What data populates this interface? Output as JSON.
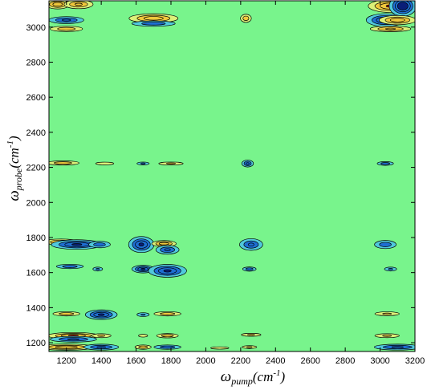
{
  "chart_data": {
    "type": "heatmap",
    "subtype": "2D contour map",
    "x_axis": {
      "label_symbol": "ω",
      "label_subscript": "pump",
      "label_unit_open": "(cm",
      "label_unit_exp": "-1",
      "label_unit_close": ")",
      "range": [
        1100,
        3200
      ],
      "ticks": [
        1200,
        1400,
        1600,
        1800,
        2000,
        2200,
        2400,
        2600,
        2800,
        3000,
        3200
      ],
      "tick_labels": [
        "1200",
        "1400",
        "1600",
        "1800",
        "2000",
        "2200",
        "2400",
        "2600",
        "2800",
        "3000",
        "3200"
      ]
    },
    "y_axis": {
      "label_symbol": "ω",
      "label_subscript": "probe",
      "label_unit_open": "(cm",
      "label_unit_exp": "-1",
      "label_unit_close": ")",
      "range": [
        1150,
        3150
      ],
      "ticks": [
        1200,
        1400,
        1600,
        1800,
        2000,
        2200,
        2400,
        2600,
        2800,
        3000
      ],
      "tick_labels": [
        "1200",
        "1400",
        "1600",
        "1800",
        "2000",
        "2200",
        "2400",
        "2600",
        "2800",
        "3000"
      ]
    },
    "background_color": "#78f48c",
    "colormap": {
      "strong_negative": "#0a1e78",
      "negative": "#1e6ed2",
      "weak_negative": "#50c8dc",
      "weak_positive": "#dcf078",
      "positive": "#f0c83c",
      "strong_positive": "#a01414"
    },
    "features": [
      {
        "x": 1150,
        "y": 3130,
        "amplitude": 0.7,
        "wx": 40,
        "wy": 15
      },
      {
        "x": 1270,
        "y": 3130,
        "amplitude": 0.6,
        "wx": 50,
        "wy": 15
      },
      {
        "x": 1200,
        "y": 3040,
        "amplitude": -0.6,
        "wx": 60,
        "wy": 12
      },
      {
        "x": 1200,
        "y": 2990,
        "amplitude": 0.5,
        "wx": 60,
        "wy": 10
      },
      {
        "x": 1700,
        "y": 3050,
        "amplitude": 0.7,
        "wx": 80,
        "wy": 15
      },
      {
        "x": 1700,
        "y": 3020,
        "amplitude": -0.5,
        "wx": 80,
        "wy": 10
      },
      {
        "x": 2230,
        "y": 3050,
        "amplitude": 0.5,
        "wx": 20,
        "wy": 15
      },
      {
        "x": 3060,
        "y": 3120,
        "amplitude": 0.8,
        "wx": 70,
        "wy": 20
      },
      {
        "x": 3130,
        "y": 3120,
        "amplitude": -1.0,
        "wx": 40,
        "wy": 30
      },
      {
        "x": 3030,
        "y": 3040,
        "amplitude": -0.8,
        "wx": 60,
        "wy": 20
      },
      {
        "x": 3100,
        "y": 3040,
        "amplitude": 0.7,
        "wx": 60,
        "wy": 15
      },
      {
        "x": 3060,
        "y": 2990,
        "amplitude": 0.6,
        "wx": 70,
        "wy": 10
      },
      {
        "x": 1180,
        "y": 2225,
        "amplitude": 0.5,
        "wx": 60,
        "wy": 8
      },
      {
        "x": 1420,
        "y": 2222,
        "amplitude": 0.35,
        "wx": 40,
        "wy": 6
      },
      {
        "x": 1640,
        "y": 2222,
        "amplitude": -0.4,
        "wx": 25,
        "wy": 6
      },
      {
        "x": 1800,
        "y": 2222,
        "amplitude": 0.4,
        "wx": 50,
        "wy": 6
      },
      {
        "x": 2240,
        "y": 2222,
        "amplitude": -0.6,
        "wx": 20,
        "wy": 12
      },
      {
        "x": 3030,
        "y": 2222,
        "amplitude": -0.5,
        "wx": 30,
        "wy": 7
      },
      {
        "x": 1170,
        "y": 1775,
        "amplitude": 0.6,
        "wx": 60,
        "wy": 10
      },
      {
        "x": 1260,
        "y": 1760,
        "amplitude": -0.8,
        "wx": 80,
        "wy": 15
      },
      {
        "x": 1390,
        "y": 1760,
        "amplitude": -0.5,
        "wx": 40,
        "wy": 12
      },
      {
        "x": 1630,
        "y": 1760,
        "amplitude": -0.8,
        "wx": 40,
        "wy": 25
      },
      {
        "x": 1760,
        "y": 1765,
        "amplitude": 0.7,
        "wx": 40,
        "wy": 10
      },
      {
        "x": 1780,
        "y": 1730,
        "amplitude": -0.6,
        "wx": 40,
        "wy": 15
      },
      {
        "x": 2260,
        "y": 1760,
        "amplitude": -0.6,
        "wx": 40,
        "wy": 20
      },
      {
        "x": 3030,
        "y": 1760,
        "amplitude": -0.5,
        "wx": 40,
        "wy": 15
      },
      {
        "x": 1220,
        "y": 1635,
        "amplitude": -0.5,
        "wx": 50,
        "wy": 8
      },
      {
        "x": 1380,
        "y": 1620,
        "amplitude": -0.4,
        "wx": 20,
        "wy": 8
      },
      {
        "x": 1640,
        "y": 1620,
        "amplitude": -0.8,
        "wx": 35,
        "wy": 12
      },
      {
        "x": 1780,
        "y": 1610,
        "amplitude": -0.8,
        "wx": 60,
        "wy": 20
      },
      {
        "x": 2250,
        "y": 1620,
        "amplitude": -0.5,
        "wx": 25,
        "wy": 8
      },
      {
        "x": 3060,
        "y": 1620,
        "amplitude": -0.4,
        "wx": 25,
        "wy": 8
      },
      {
        "x": 1200,
        "y": 1365,
        "amplitude": 0.5,
        "wx": 50,
        "wy": 8
      },
      {
        "x": 1400,
        "y": 1360,
        "amplitude": -0.8,
        "wx": 50,
        "wy": 15
      },
      {
        "x": 1640,
        "y": 1360,
        "amplitude": -0.4,
        "wx": 25,
        "wy": 8
      },
      {
        "x": 1780,
        "y": 1365,
        "amplitude": 0.5,
        "wx": 50,
        "wy": 8
      },
      {
        "x": 3040,
        "y": 1365,
        "amplitude": 0.4,
        "wx": 50,
        "wy": 8
      },
      {
        "x": 1240,
        "y": 1240,
        "amplitude": 0.8,
        "wx": 80,
        "wy": 10
      },
      {
        "x": 1240,
        "y": 1220,
        "amplitude": -0.6,
        "wx": 80,
        "wy": 10
      },
      {
        "x": 1400,
        "y": 1240,
        "amplitude": 0.4,
        "wx": 40,
        "wy": 8
      },
      {
        "x": 1640,
        "y": 1240,
        "amplitude": 0.35,
        "wx": 20,
        "wy": 6
      },
      {
        "x": 1780,
        "y": 1240,
        "amplitude": 0.5,
        "wx": 40,
        "wy": 8
      },
      {
        "x": 2260,
        "y": 1245,
        "amplitude": 0.4,
        "wx": 40,
        "wy": 6
      },
      {
        "x": 3040,
        "y": 1240,
        "amplitude": 0.4,
        "wx": 50,
        "wy": 8
      },
      {
        "x": 1200,
        "y": 1175,
        "amplitude": 0.7,
        "wx": 90,
        "wy": 10
      },
      {
        "x": 1400,
        "y": 1175,
        "amplitude": -0.6,
        "wx": 60,
        "wy": 10
      },
      {
        "x": 1640,
        "y": 1175,
        "amplitude": 0.5,
        "wx": 30,
        "wy": 8
      },
      {
        "x": 1780,
        "y": 1175,
        "amplitude": -0.5,
        "wx": 50,
        "wy": 8
      },
      {
        "x": 2080,
        "y": 1170,
        "amplitude": 0.35,
        "wx": 40,
        "wy": 5
      },
      {
        "x": 2250,
        "y": 1175,
        "amplitude": 0.4,
        "wx": 30,
        "wy": 6
      },
      {
        "x": 3100,
        "y": 1175,
        "amplitude": -0.6,
        "wx": 80,
        "wy": 10
      }
    ]
  }
}
